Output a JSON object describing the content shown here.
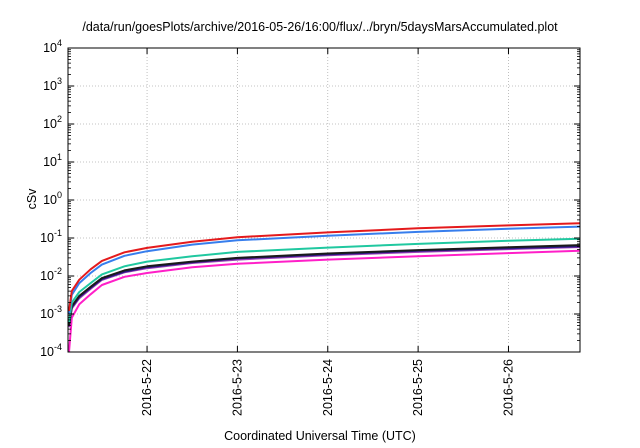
{
  "chart_data": {
    "type": "line",
    "title": "/data/run/goesPlots/archive/2016-05-26/16:00/flux/../bryn/5daysMarsAccumulated.plot",
    "xlabel": "Coordinated Universal Time (UTC)",
    "ylabel": "cSv",
    "xlim": [
      "2016-05-21 03:00",
      "2016-05-26 19:00"
    ],
    "ylim": [
      0.0001,
      10000
    ],
    "y_scale": "log",
    "grid": true,
    "x_ticks": [
      "2016-5-22",
      "2016-5-23",
      "2016-5-24",
      "2016-5-25",
      "2016-5-26"
    ],
    "y_ticks": [
      {
        "value": 0.0001,
        "base": "10",
        "exp": "-4"
      },
      {
        "value": 0.001,
        "base": "10",
        "exp": "-3"
      },
      {
        "value": 0.01,
        "base": "10",
        "exp": "-2"
      },
      {
        "value": 0.1,
        "base": "10",
        "exp": "-1"
      },
      {
        "value": 1,
        "base": "10",
        "exp": "0"
      },
      {
        "value": 10,
        "base": "10",
        "exp": "1"
      },
      {
        "value": 100,
        "base": "10",
        "exp": "2"
      },
      {
        "value": 1000,
        "base": "10",
        "exp": "3"
      },
      {
        "value": 10000,
        "base": "10",
        "exp": "4"
      }
    ],
    "x": [
      "2016-05-21 03:00",
      "2016-05-21 04:00",
      "2016-05-21 06:00",
      "2016-05-21 09:00",
      "2016-05-21 12:00",
      "2016-05-21 18:00",
      "2016-05-22 00:00",
      "2016-05-22 12:00",
      "2016-05-23 00:00",
      "2016-05-24 00:00",
      "2016-05-25 00:00",
      "2016-05-26 00:00",
      "2016-05-26 19:00"
    ],
    "series": [
      {
        "color": "#e41a1c",
        "values": [
          0.0012,
          0.004,
          0.008,
          0.015,
          0.025,
          0.042,
          0.055,
          0.08,
          0.105,
          0.14,
          0.18,
          0.215,
          0.245
        ]
      },
      {
        "color": "#377eed",
        "values": [
          0.001,
          0.0032,
          0.0065,
          0.012,
          0.02,
          0.034,
          0.045,
          0.067,
          0.087,
          0.115,
          0.145,
          0.175,
          0.2
        ]
      },
      {
        "color": "#20c8a0",
        "values": [
          0.0006,
          0.002,
          0.0038,
          0.0065,
          0.011,
          0.018,
          0.024,
          0.033,
          0.043,
          0.056,
          0.07,
          0.085,
          0.096
        ]
      },
      {
        "color": "#1a1a1a",
        "values": [
          0.0005,
          0.0016,
          0.003,
          0.0052,
          0.0088,
          0.014,
          0.018,
          0.024,
          0.03,
          0.039,
          0.048,
          0.057,
          0.065
        ]
      },
      {
        "color": "#2a1a8a",
        "values": [
          0.0005,
          0.0015,
          0.0028,
          0.0049,
          0.0083,
          0.013,
          0.017,
          0.023,
          0.029,
          0.037,
          0.046,
          0.054,
          0.061
        ]
      },
      {
        "color": "#9b3fb5",
        "values": [
          0.00045,
          0.0014,
          0.0026,
          0.0046,
          0.0079,
          0.0125,
          0.016,
          0.022,
          0.027,
          0.035,
          0.043,
          0.051,
          0.058
        ]
      },
      {
        "color": "#ff1fc8",
        "values": [
          0.0001,
          0.0008,
          0.0018,
          0.0033,
          0.0058,
          0.0095,
          0.012,
          0.017,
          0.021,
          0.027,
          0.033,
          0.04,
          0.046
        ]
      }
    ]
  }
}
